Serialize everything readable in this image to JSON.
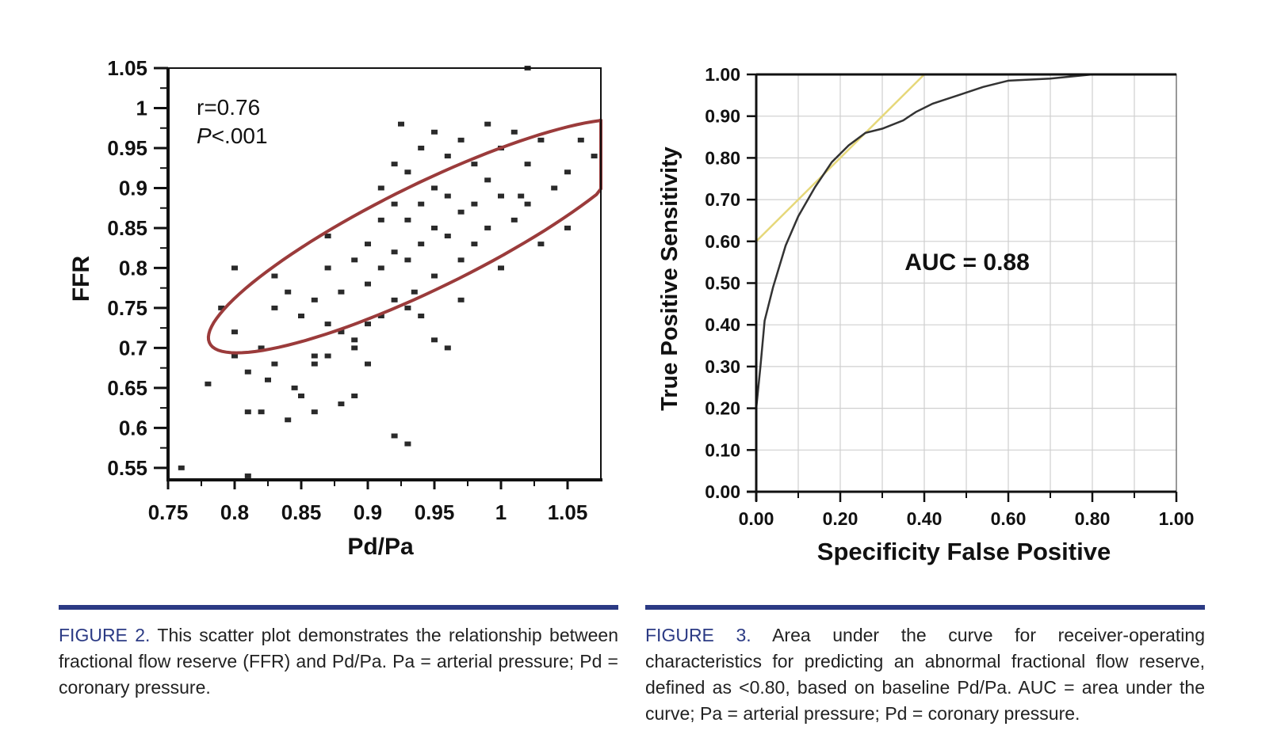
{
  "colors": {
    "accent": "#2b3a84",
    "ellipse": "#9b3b3b",
    "roc_curve": "#333333",
    "tangent": "#e6d87a",
    "marker": "#2a2a2a"
  },
  "chart_data": [
    {
      "type": "scatter",
      "title": "",
      "xlabel": "Pd/Pa",
      "ylabel": "FFR",
      "xlim": [
        0.75,
        1.075
      ],
      "ylim": [
        0.535,
        1.05
      ],
      "x_ticks": [
        "0.75",
        "0.8",
        "0.85",
        "0.9",
        "0.95",
        "1",
        "1.05"
      ],
      "y_ticks": [
        "1.05",
        "1",
        "0.95",
        "0.9",
        "0.85",
        "0.8",
        "0.75",
        "0.7",
        "0.65",
        "0.6",
        "0.55"
      ],
      "grid": false,
      "annotation_r": "r=0.76",
      "annotation_p_symbol": "P",
      "annotation_p_value": "<.001",
      "confidence_ellipse": {
        "center": [
          0.945,
          0.84
        ],
        "angle_deg": 38,
        "semi_major": 0.205,
        "semi_minor": 0.058
      },
      "x": [
        0.76,
        0.78,
        0.79,
        0.8,
        0.8,
        0.8,
        0.81,
        0.81,
        0.81,
        0.82,
        0.82,
        0.83,
        0.83,
        0.83,
        0.84,
        0.84,
        0.85,
        0.85,
        0.86,
        0.86,
        0.86,
        0.87,
        0.87,
        0.87,
        0.88,
        0.88,
        0.88,
        0.89,
        0.89,
        0.89,
        0.9,
        0.9,
        0.9,
        0.91,
        0.91,
        0.91,
        0.91,
        0.92,
        0.92,
        0.92,
        0.92,
        0.93,
        0.93,
        0.93,
        0.93,
        0.94,
        0.94,
        0.94,
        0.94,
        0.95,
        0.95,
        0.95,
        0.95,
        0.96,
        0.96,
        0.96,
        0.96,
        0.97,
        0.97,
        0.97,
        0.98,
        0.98,
        0.98,
        0.99,
        0.99,
        0.99,
        1.0,
        1.0,
        1.0,
        1.01,
        1.01,
        1.02,
        1.02,
        1.03,
        1.03,
        1.04,
        1.05,
        1.05,
        0.93,
        0.92,
        0.925,
        0.89,
        0.87,
        0.9,
        0.95,
        0.97,
        1.02,
        1.06,
        1.07,
        1.015,
        0.825,
        0.845,
        0.86,
        0.935
      ],
      "y": [
        0.55,
        0.655,
        0.75,
        0.69,
        0.72,
        0.8,
        0.54,
        0.62,
        0.67,
        0.62,
        0.7,
        0.68,
        0.75,
        0.79,
        0.61,
        0.77,
        0.64,
        0.74,
        0.62,
        0.69,
        0.76,
        0.73,
        0.8,
        0.84,
        0.63,
        0.72,
        0.77,
        0.64,
        0.7,
        0.81,
        0.73,
        0.78,
        0.83,
        0.74,
        0.8,
        0.86,
        0.9,
        0.76,
        0.82,
        0.88,
        0.93,
        0.75,
        0.81,
        0.86,
        0.92,
        0.74,
        0.83,
        0.88,
        0.95,
        0.79,
        0.85,
        0.9,
        0.97,
        0.7,
        0.84,
        0.89,
        0.94,
        0.81,
        0.87,
        0.96,
        0.83,
        0.88,
        0.93,
        0.85,
        0.91,
        0.98,
        0.8,
        0.89,
        0.95,
        0.86,
        0.97,
        0.88,
        0.93,
        0.83,
        0.96,
        0.9,
        0.85,
        0.92,
        0.58,
        0.59,
        0.98,
        0.71,
        0.69,
        0.68,
        0.71,
        0.76,
        1.05,
        0.96,
        0.94,
        0.89,
        0.66,
        0.65,
        0.68,
        0.77
      ]
    },
    {
      "type": "line",
      "title": "",
      "xlabel": "Specificity False Positive",
      "ylabel": "True Positive Sensitivity",
      "xlim": [
        0.0,
        1.0
      ],
      "ylim": [
        0.0,
        1.0
      ],
      "x_ticks": [
        "0.00",
        "0.20",
        "0.40",
        "0.60",
        "0.80",
        "1.00"
      ],
      "y_ticks": [
        "0.00",
        "0.10",
        "0.20",
        "0.30",
        "0.40",
        "0.50",
        "0.60",
        "0.70",
        "0.80",
        "0.90",
        "1.00"
      ],
      "grid": true,
      "annotation": "AUC = 0.88",
      "series": [
        {
          "x": [
            0.0,
            0.01,
            0.02,
            0.04,
            0.07,
            0.1,
            0.14,
            0.18,
            0.22,
            0.26,
            0.3,
            0.35,
            0.38,
            0.42,
            0.48,
            0.54,
            0.6,
            0.7,
            0.8,
            0.9,
            1.0
          ],
          "y": [
            0.2,
            0.3,
            0.41,
            0.49,
            0.59,
            0.66,
            0.73,
            0.79,
            0.83,
            0.86,
            0.87,
            0.89,
            0.91,
            0.93,
            0.95,
            0.97,
            0.985,
            0.99,
            1.0,
            1.0,
            1.0
          ]
        },
        {
          "x": [
            0.0,
            0.4
          ],
          "y": [
            0.6,
            1.0
          ]
        }
      ]
    }
  ],
  "captions": {
    "fig2_label": "FIGURE 2.",
    "fig2_text": "This scatter plot demonstrates the relationship between fractional flow reserve (FFR) and Pd/Pa. Pa = arterial pressure; Pd = coronary pressure.",
    "fig3_label": "FIGURE 3.",
    "fig3_text": "Area under the curve for receiver-operating characteristics for predicting an abnormal fractional flow reserve, defined as <0.80, based on baseline Pd/Pa. AUC = area under the curve; Pa = arterial pressure; Pd = coronary pressure."
  }
}
